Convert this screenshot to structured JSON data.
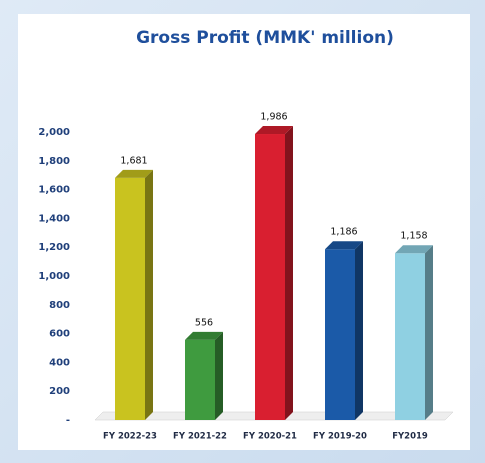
{
  "chart_data": {
    "type": "bar",
    "title": "Gross Profit (MMK' million)",
    "categories": [
      "FY 2022-23",
      "FY 2021-22",
      "FY 2020-21",
      "FY 2019-20",
      "FY2019"
    ],
    "values": [
      1681,
      556,
      1986,
      1186,
      1158
    ],
    "value_labels": [
      "1,681",
      "556",
      "1,986",
      "1,186",
      "1,158"
    ],
    "colors": [
      "#c9c31f",
      "#3f9b3f",
      "#d91f30",
      "#1b5aa8",
      "#8fd0e2"
    ],
    "ylim": [
      0,
      2000
    ],
    "yticks": [
      {
        "value": 0,
        "label": "-"
      },
      200,
      400,
      600,
      800,
      {
        "value": 1000,
        "label": "1,000"
      },
      {
        "value": 1200,
        "label": "1,200"
      },
      {
        "value": 1400,
        "label": "1,400"
      },
      {
        "value": 1600,
        "label": "1,600"
      },
      {
        "value": 1800,
        "label": "1,800"
      },
      {
        "value": 2000,
        "label": "2,000"
      }
    ]
  }
}
